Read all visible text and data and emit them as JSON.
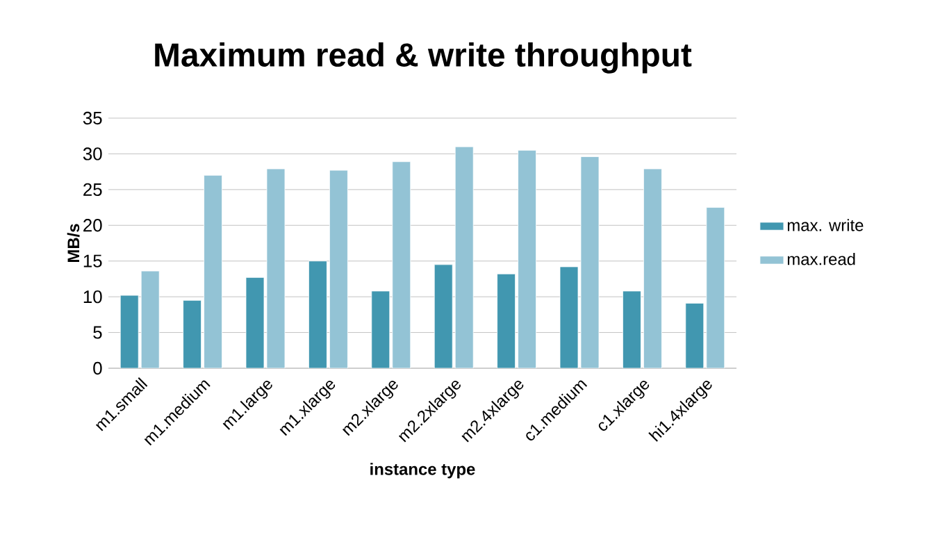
{
  "chart_data": {
    "type": "bar",
    "title": "Maximum read & write throughput",
    "xlabel": "instance type",
    "ylabel": "MB/s",
    "categories": [
      "m1.small",
      "m1.medium",
      "m1.large",
      "m1.xlarge",
      "m2.xlarge",
      "m2.2xlarge",
      "m2.4xlarge",
      "c1.medium",
      "c1.xlarge",
      "hi1.4xlarge"
    ],
    "series": [
      {
        "name": "max. write",
        "color": "#4197b0",
        "values": [
          10.2,
          9.5,
          12.7,
          15.0,
          10.8,
          14.5,
          13.2,
          14.2,
          10.8,
          9.1
        ]
      },
      {
        "name": "max.read",
        "color": "#93c3d5",
        "values": [
          13.6,
          27.0,
          27.9,
          27.7,
          28.9,
          31.0,
          30.5,
          29.6,
          27.9,
          22.5
        ]
      }
    ],
    "ylim": [
      0,
      35
    ],
    "yticks": [
      0,
      5,
      10,
      15,
      20,
      25,
      30,
      35
    ],
    "grid": "y",
    "legend": "right"
  }
}
